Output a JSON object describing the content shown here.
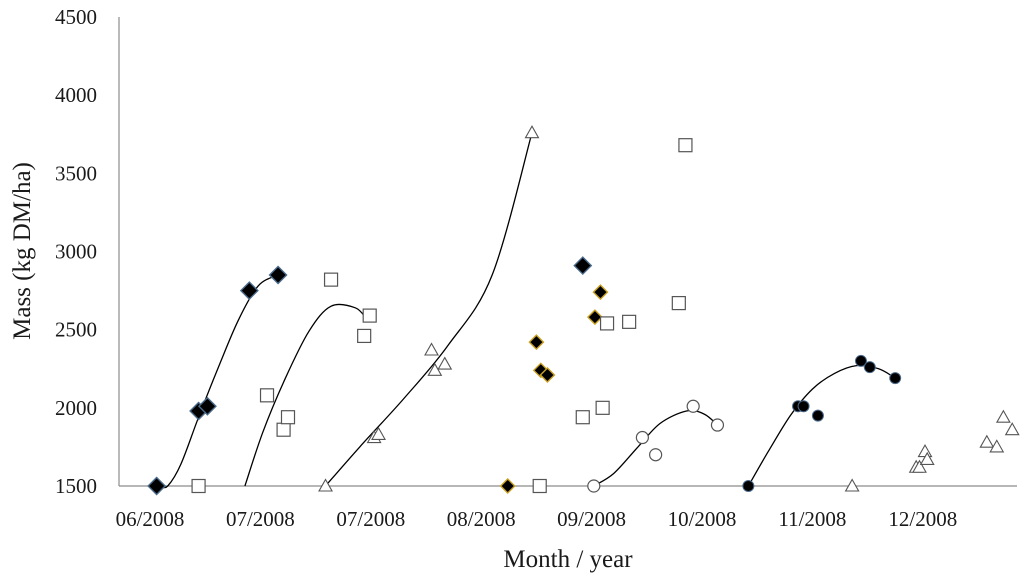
{
  "chart_data": {
    "type": "scatter",
    "xlabel": "Month / year",
    "ylabel": "Mass (kg DM/ha)",
    "ylim": [
      1500,
      4500
    ],
    "yticks": [
      1500,
      2000,
      2500,
      3000,
      3500,
      4000,
      4500
    ],
    "xticks": [
      "06/2008",
      "07/2008",
      "07/2008",
      "08/2008",
      "09/2008",
      "10/2008",
      "11/2008",
      "12/2008"
    ],
    "grid": false,
    "legend": "none",
    "colors": {
      "marker_edge": "#555555",
      "fill_dark": "#000000",
      "fill_open": "#ffffff",
      "gold_edge": "#c8a020",
      "blue_edge": "#4a6a8a",
      "curve": "#000000"
    },
    "series": [
      {
        "marker": "diamond-filled",
        "points": [
          [
            0.06,
            1500
          ],
          [
            0.44,
            1980
          ],
          [
            0.52,
            2010
          ],
          [
            0.9,
            2750
          ],
          [
            1.16,
            2850
          ]
        ]
      },
      {
        "marker": "square-open",
        "points": [
          [
            0.44,
            1500
          ],
          [
            1.06,
            2080
          ],
          [
            1.21,
            1860
          ],
          [
            1.25,
            1940
          ],
          [
            1.64,
            2820
          ],
          [
            1.94,
            2460
          ],
          [
            1.99,
            2590
          ]
        ]
      },
      {
        "marker": "triangle-open",
        "points": [
          [
            1.59,
            1500
          ],
          [
            2.03,
            1810
          ],
          [
            2.07,
            1830
          ],
          [
            2.55,
            2370
          ],
          [
            2.58,
            2240
          ],
          [
            2.67,
            2280
          ],
          [
            3.46,
            3760
          ]
        ]
      },
      {
        "marker": "diamond-filled-gold",
        "points": [
          [
            3.24,
            1500
          ],
          [
            3.5,
            2420
          ],
          [
            3.54,
            2240
          ],
          [
            3.6,
            2210
          ],
          [
            4.03,
            2580
          ],
          [
            4.08,
            2740
          ]
        ]
      },
      {
        "marker": "diamond-filled",
        "points": [
          [
            3.92,
            2910
          ]
        ]
      },
      {
        "marker": "square-open",
        "points": [
          [
            3.53,
            1500
          ],
          [
            3.92,
            1940
          ],
          [
            4.1,
            2000
          ],
          [
            4.14,
            2540
          ],
          [
            4.34,
            2550
          ],
          [
            4.79,
            2670
          ],
          [
            4.85,
            3680
          ]
        ]
      },
      {
        "marker": "circle-open",
        "points": [
          [
            4.02,
            1500
          ],
          [
            4.46,
            1810
          ],
          [
            4.58,
            1700
          ],
          [
            4.92,
            2010
          ],
          [
            5.14,
            1890
          ]
        ]
      },
      {
        "marker": "circle-filled",
        "points": [
          [
            5.42,
            1500
          ],
          [
            5.87,
            2010
          ],
          [
            5.92,
            2010
          ],
          [
            6.05,
            1950
          ],
          [
            6.44,
            2300
          ],
          [
            6.52,
            2260
          ],
          [
            6.75,
            2190
          ]
        ]
      },
      {
        "marker": "triangle-open",
        "points": [
          [
            6.36,
            1500
          ],
          [
            6.94,
            1620
          ],
          [
            6.97,
            1620
          ],
          [
            7.02,
            1720
          ],
          [
            7.04,
            1670
          ],
          [
            7.58,
            1780
          ],
          [
            7.67,
            1750
          ],
          [
            7.73,
            1940
          ],
          [
            7.81,
            1860
          ]
        ]
      }
    ],
    "curves": [
      [
        [
          0.1,
          1500
        ],
        [
          0.16,
          1500
        ],
        [
          0.28,
          1640
        ],
        [
          0.44,
          1940
        ],
        [
          0.62,
          2260
        ],
        [
          0.8,
          2560
        ],
        [
          0.98,
          2780
        ],
        [
          1.16,
          2850
        ]
      ],
      [
        [
          0.86,
          1500
        ],
        [
          1.02,
          1840
        ],
        [
          1.22,
          2180
        ],
        [
          1.44,
          2490
        ],
        [
          1.64,
          2650
        ],
        [
          1.86,
          2640
        ],
        [
          1.96,
          2570
        ]
      ],
      [
        [
          1.59,
          1500
        ],
        [
          1.9,
          1750
        ],
        [
          2.3,
          2060
        ],
        [
          2.7,
          2400
        ],
        [
          3.1,
          2850
        ],
        [
          3.46,
          3760
        ]
      ],
      [
        [
          4.02,
          1500
        ],
        [
          4.2,
          1580
        ],
        [
          4.42,
          1750
        ],
        [
          4.62,
          1900
        ],
        [
          4.86,
          1980
        ],
        [
          5.02,
          1960
        ],
        [
          5.14,
          1890
        ]
      ],
      [
        [
          5.42,
          1500
        ],
        [
          5.6,
          1720
        ],
        [
          5.8,
          1950
        ],
        [
          6.0,
          2120
        ],
        [
          6.2,
          2220
        ],
        [
          6.4,
          2270
        ],
        [
          6.6,
          2250
        ],
        [
          6.75,
          2190
        ]
      ]
    ]
  }
}
